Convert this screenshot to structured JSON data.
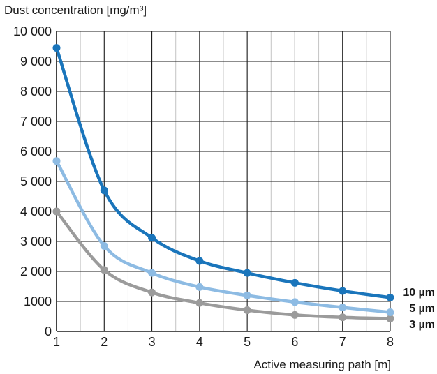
{
  "chart_data": {
    "type": "line",
    "title": "",
    "ylabel": "Dust concentration [mg/m³]",
    "xlabel": "Active measuring path [m]",
    "x": [
      1,
      2,
      3,
      4,
      5,
      6,
      7,
      8
    ],
    "xlim": [
      1,
      8
    ],
    "ylim": [
      0,
      10000
    ],
    "yticks": [
      {
        "value": 0,
        "label": "0"
      },
      {
        "value": 1000,
        "label": "1000"
      },
      {
        "value": 2000,
        "label": "2 000"
      },
      {
        "value": 3000,
        "label": "3 000"
      },
      {
        "value": 4000,
        "label": "4 000"
      },
      {
        "value": 5000,
        "label": "5 000"
      },
      {
        "value": 6000,
        "label": "6 000"
      },
      {
        "value": 7000,
        "label": "7 000"
      },
      {
        "value": 8000,
        "label": "8 000"
      },
      {
        "value": 9000,
        "label": "9 000"
      },
      {
        "value": 10000,
        "label": "10 000"
      }
    ],
    "xticks": [
      "1",
      "2",
      "3",
      "4",
      "5",
      "6",
      "7",
      "8"
    ],
    "grid": true,
    "series": [
      {
        "name": "10 µm",
        "color": "#1a75bb",
        "values": [
          9450,
          4700,
          3120,
          2350,
          1950,
          1620,
          1350,
          1130
        ]
      },
      {
        "name": "5 µm",
        "color": "#8dbbe3",
        "values": [
          5680,
          2850,
          1950,
          1480,
          1200,
          980,
          800,
          640
        ]
      },
      {
        "name": "3 µm",
        "color": "#9b9b9b",
        "values": [
          4000,
          2050,
          1300,
          950,
          710,
          550,
          470,
          430
        ]
      }
    ]
  }
}
